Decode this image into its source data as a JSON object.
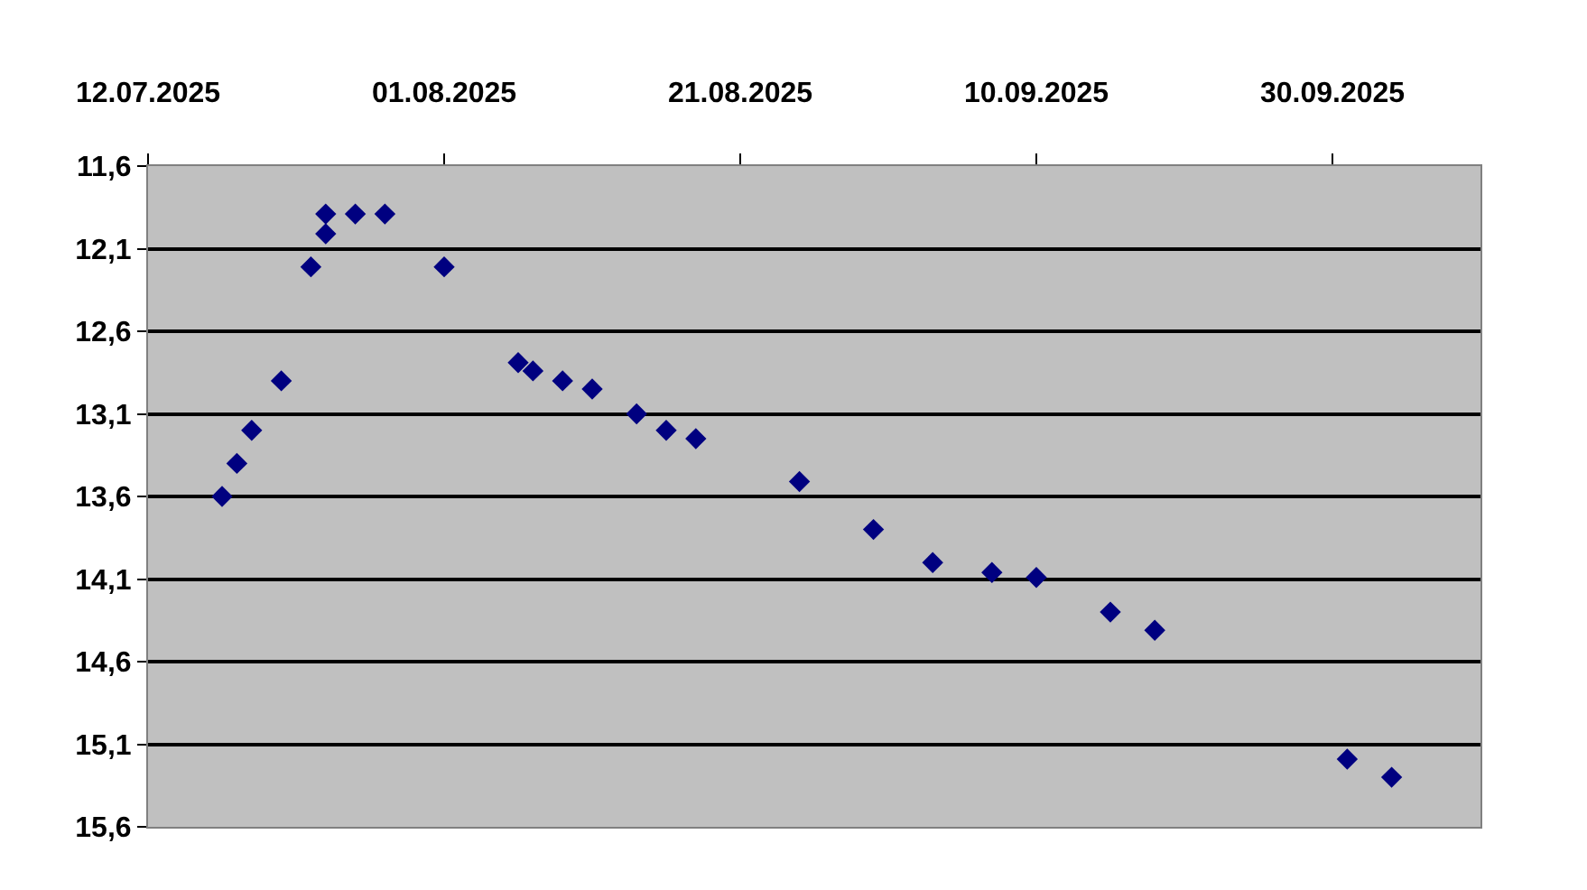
{
  "chart_data": {
    "type": "scatter",
    "x": [
      "2025-07-17",
      "2025-07-18",
      "2025-07-19",
      "2025-07-21",
      "2025-07-23",
      "2025-07-24",
      "2025-07-24",
      "2025-07-26",
      "2025-07-28",
      "2025-08-01",
      "2025-08-06",
      "2025-08-07",
      "2025-08-09",
      "2025-08-11",
      "2025-08-14",
      "2025-08-16",
      "2025-08-18",
      "2025-08-25",
      "2025-08-30",
      "2025-09-03",
      "2025-09-07",
      "2025-09-10",
      "2025-09-15",
      "2025-09-18",
      "2025-10-01",
      "2025-10-04"
    ],
    "series": [
      {
        "color": "#000080",
        "values": [
          13.6,
          13.4,
          13.2,
          12.9,
          12.21,
          12.01,
          11.89,
          11.89,
          11.89,
          12.21,
          12.79,
          12.84,
          12.9,
          12.95,
          13.1,
          13.2,
          13.25,
          13.51,
          13.8,
          14.0,
          14.06,
          14.09,
          14.3,
          14.41,
          15.19,
          15.3
        ]
      }
    ],
    "xlim": [
      "2025-07-12",
      "2025-10-10"
    ],
    "xticks": [
      {
        "value": "2025-07-12",
        "label": "12.07.2025"
      },
      {
        "value": "2025-08-01",
        "label": "01.08.2025"
      },
      {
        "value": "2025-08-21",
        "label": "21.08.2025"
      },
      {
        "value": "2025-09-10",
        "label": "10.09.2025"
      },
      {
        "value": "2025-09-30",
        "label": "30.09.2025"
      }
    ],
    "ylim": [
      15.6,
      11.6
    ],
    "yticks": [
      {
        "value": 11.6,
        "label": "11,6"
      },
      {
        "value": 12.1,
        "label": "12,1"
      },
      {
        "value": 12.6,
        "label": "12,6"
      },
      {
        "value": 13.1,
        "label": "13,1"
      },
      {
        "value": 13.6,
        "label": "13,6"
      },
      {
        "value": 14.1,
        "label": "14,1"
      },
      {
        "value": 14.6,
        "label": "14,6"
      },
      {
        "value": 15.1,
        "label": "15,1"
      },
      {
        "value": 15.6,
        "label": "15,6"
      }
    ],
    "grid": "y",
    "marker": "diamond",
    "legend": false
  }
}
